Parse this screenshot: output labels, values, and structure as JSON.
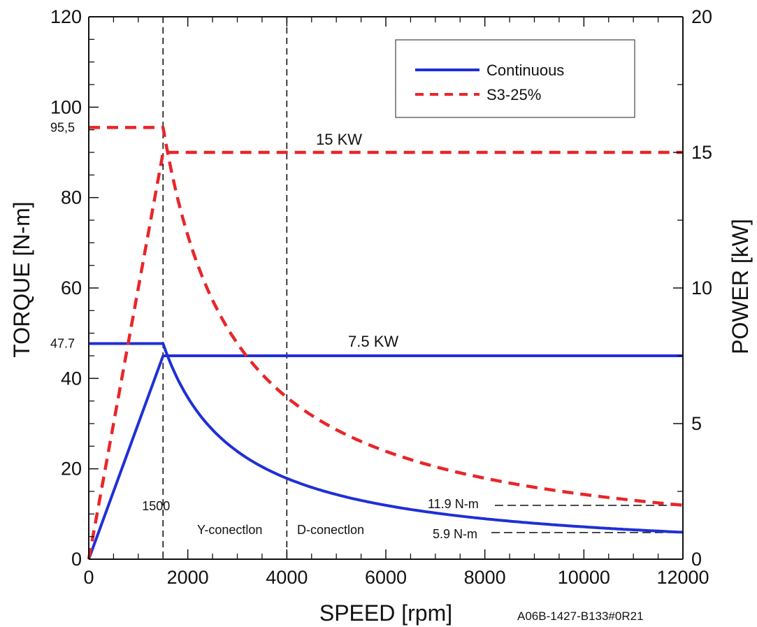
{
  "chart_data": {
    "type": "line",
    "xlabel": "SPEED [rpm]",
    "ylabel": "TORQUE  [N-m]",
    "y2label": "POWER  [kW]",
    "xlim": [
      0,
      12000
    ],
    "ylim": [
      0,
      120
    ],
    "y2lim": [
      0,
      20
    ],
    "x_ticks": [
      0,
      2000,
      4000,
      6000,
      8000,
      10000,
      12000
    ],
    "x_tick_labels": [
      "0",
      "2000",
      "4000",
      "6000",
      "8000",
      "10000",
      "12000"
    ],
    "y_ticks": [
      0,
      20,
      40,
      60,
      80,
      100,
      120
    ],
    "y_tick_labels": [
      "0",
      "20",
      "40",
      "60",
      "80",
      "100",
      "120"
    ],
    "y2_ticks": [
      0,
      5,
      10,
      15,
      20
    ],
    "y2_tick_labels": [
      "0",
      "5",
      "10",
      "15",
      "20"
    ],
    "extra_y_labels": [
      {
        "value": 95.5,
        "text": "95,5"
      },
      {
        "value": 47.7,
        "text": "47.7"
      }
    ],
    "grid": false,
    "legend": {
      "placement": "top-right",
      "entries": [
        {
          "name": "Continuous",
          "color": "#1f2fd6",
          "dash": "solid"
        },
        {
          "name": "S3-25%",
          "color": "#e8262a",
          "dash": "dashed"
        }
      ]
    },
    "series": [
      {
        "name": "Continuous",
        "kind": "torque",
        "color": "#1f2fd6",
        "dash": "solid",
        "description_points": {
          "x": [
            0,
            1500,
            12000
          ],
          "y": [
            47.7,
            47.7,
            5.9
          ]
        },
        "constant_power_kw": 7.5
      },
      {
        "name": "Continuous",
        "kind": "power",
        "color": "#1f2fd6",
        "dash": "solid",
        "x": [
          0,
          1500,
          12000
        ],
        "y_kw": [
          0,
          7.5,
          7.5
        ]
      },
      {
        "name": "S3-25%",
        "kind": "torque",
        "color": "#e8262a",
        "dash": "dashed",
        "description_points": {
          "x": [
            0,
            1500,
            12000
          ],
          "y": [
            95.5,
            95.5,
            11.9
          ]
        },
        "constant_power_kw": 15
      },
      {
        "name": "S3-25%",
        "kind": "power",
        "color": "#e8262a",
        "dash": "dashed",
        "x": [
          0,
          1500,
          12000
        ],
        "y_kw": [
          0,
          15,
          15
        ]
      }
    ],
    "reference_lines": [
      {
        "x": 1500,
        "label": "1500"
      },
      {
        "x": 4000,
        "label": ""
      }
    ],
    "annotations": {
      "power_15": "15 KW",
      "power_7_5": "7.5 KW",
      "y_connection": "Y-conectlon",
      "d_connection": "D-conectlon",
      "torque_11_9": "11.9 N-m",
      "torque_5_9": "5.9 N-m",
      "code": "A06B-1427-B133#0R21"
    }
  }
}
